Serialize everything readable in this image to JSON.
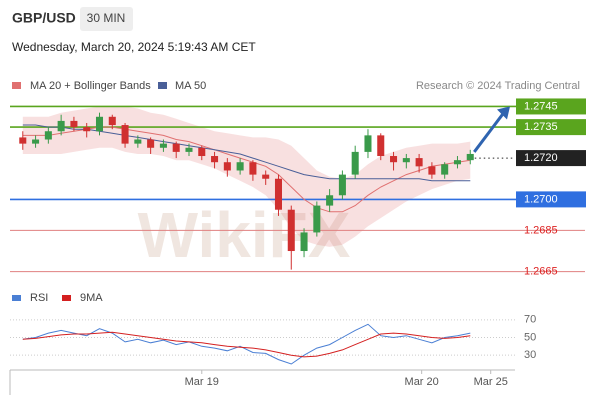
{
  "chart_data": [
    {
      "type": "candlestick",
      "title": "GBP/USD",
      "timeframe": "30 MIN",
      "subtitle": "Wednesday, March 20, 2024 5:19:43 AM CET",
      "source": "Research © 2024 Trading Central",
      "watermark": "WikiFX",
      "up_color": "#3a9a4a",
      "down_color": "#d03030",
      "xlim": [
        -1,
        38.5
      ],
      "ylim": [
        1.266,
        1.2752
      ],
      "open": [
        1.273,
        1.2727,
        1.2729,
        1.2733,
        1.2738,
        1.2735,
        1.2733,
        1.274,
        1.2736,
        1.2727,
        1.2729,
        1.2725,
        1.2727,
        1.2723,
        1.2725,
        1.2721,
        1.2718,
        1.2714,
        1.2718,
        1.2712,
        1.271,
        1.2695,
        1.2675,
        1.2684,
        1.2697,
        1.2702,
        1.2712,
        1.2723,
        1.2731,
        1.2721,
        1.2718,
        1.272,
        1.2716,
        1.2712,
        1.2717,
        1.2719
      ],
      "high": [
        1.2733,
        1.2731,
        1.2735,
        1.2741,
        1.274,
        1.2737,
        1.2742,
        1.2741,
        1.2737,
        1.2731,
        1.273,
        1.2729,
        1.2728,
        1.2727,
        1.2726,
        1.2723,
        1.272,
        1.272,
        1.2719,
        1.2714,
        1.2712,
        1.2697,
        1.2686,
        1.2699,
        1.2705,
        1.2714,
        1.2726,
        1.2734,
        1.2732,
        1.2723,
        1.2722,
        1.2722,
        1.2718,
        1.2718,
        1.2721,
        1.2724
      ],
      "low": [
        1.2724,
        1.2725,
        1.2727,
        1.2731,
        1.2733,
        1.273,
        1.2731,
        1.2734,
        1.2725,
        1.2725,
        1.2722,
        1.2723,
        1.272,
        1.2721,
        1.2719,
        1.2715,
        1.2711,
        1.2712,
        1.2709,
        1.2707,
        1.2692,
        1.2666,
        1.2672,
        1.2682,
        1.2694,
        1.27,
        1.271,
        1.272,
        1.2719,
        1.2714,
        1.2715,
        1.2713,
        1.271,
        1.271,
        1.2715,
        1.2717
      ],
      "close": [
        1.2727,
        1.2729,
        1.2733,
        1.2738,
        1.2735,
        1.2733,
        1.274,
        1.2736,
        1.2727,
        1.2729,
        1.2725,
        1.2727,
        1.2723,
        1.2725,
        1.2721,
        1.2718,
        1.2714,
        1.2718,
        1.2712,
        1.271,
        1.2695,
        1.2675,
        1.2684,
        1.2697,
        1.2702,
        1.2712,
        1.2723,
        1.2731,
        1.2721,
        1.2718,
        1.272,
        1.2716,
        1.2712,
        1.2717,
        1.2719,
        1.2722
      ],
      "series": [
        {
          "name": "MA 20 + Bollinger Bands",
          "color": "#e07070",
          "values": [
            1.2731,
            1.2731,
            1.2731,
            1.2732,
            1.2733,
            1.2734,
            1.2735,
            1.2735,
            1.2734,
            1.2733,
            1.2732,
            1.2731,
            1.2729,
            1.2728,
            1.2726,
            1.2724,
            1.2722,
            1.272,
            1.2718,
            1.2716,
            1.2712,
            1.2706,
            1.27,
            1.2696,
            1.2694,
            1.2694,
            1.2697,
            1.2702,
            1.2706,
            1.2709,
            1.2712,
            1.2714,
            1.2716,
            1.2717,
            1.2718,
            1.2719
          ],
          "upper": [
            1.274,
            1.274,
            1.274,
            1.2742,
            1.2743,
            1.2744,
            1.2745,
            1.2745,
            1.2745,
            1.2744,
            1.2742,
            1.2741,
            1.2739,
            1.2737,
            1.2735,
            1.2733,
            1.2732,
            1.2731,
            1.273,
            1.273,
            1.2729,
            1.2726,
            1.272,
            1.2714,
            1.2711,
            1.271,
            1.2712,
            1.2717,
            1.2721,
            1.2723,
            1.2725,
            1.2726,
            1.2727,
            1.2727,
            1.2727,
            1.2728
          ],
          "lower": [
            1.2722,
            1.2722,
            1.2722,
            1.2722,
            1.2723,
            1.2724,
            1.2725,
            1.2725,
            1.2723,
            1.2722,
            1.2722,
            1.2721,
            1.2719,
            1.2719,
            1.2717,
            1.2715,
            1.2712,
            1.2709,
            1.2706,
            1.2702,
            1.2695,
            1.2686,
            1.268,
            1.2678,
            1.2677,
            1.2678,
            1.2682,
            1.2687,
            1.2691,
            1.2695,
            1.2699,
            1.2702,
            1.2705,
            1.2707,
            1.2709,
            1.271
          ]
        },
        {
          "name": "MA 50",
          "color": "#4a5f98",
          "values": [
            1.2736,
            1.2736,
            1.2735,
            1.2735,
            1.2734,
            1.2734,
            1.2733,
            1.2732,
            1.2731,
            1.273,
            1.2729,
            1.2728,
            1.2727,
            1.2726,
            1.2725,
            1.2724,
            1.2723,
            1.2722,
            1.272,
            1.2718,
            1.2716,
            1.2714,
            1.2712,
            1.2711,
            1.271,
            1.271,
            1.271,
            1.271,
            1.271,
            1.271,
            1.271,
            1.271,
            1.2709,
            1.2709,
            1.2709,
            1.2709
          ]
        }
      ],
      "levels": [
        {
          "value": 1.2745,
          "color": "#5aa51e",
          "style": "box"
        },
        {
          "value": 1.2735,
          "color": "#5aa51e",
          "style": "box"
        },
        {
          "value": 1.272,
          "label": "1.2720",
          "color": "#222222",
          "style": "current"
        },
        {
          "value": 1.27,
          "label": "1.2700",
          "color": "#2f6fe0",
          "style": "box"
        },
        {
          "value": 1.2685,
          "color": "#e08080",
          "style": "text"
        },
        {
          "value": 1.2665,
          "color": "#e08080",
          "style": "text"
        }
      ]
    },
    {
      "type": "line",
      "xlim": [
        -1,
        38.5
      ],
      "ylim": [
        20,
        80
      ],
      "yticks": [
        30,
        50,
        70
      ],
      "xticks": [
        {
          "value": 14,
          "label": "Mar 19"
        },
        {
          "value": 31.2,
          "label": "Mar 20"
        },
        {
          "value": 36.6,
          "label": "Mar 25"
        }
      ],
      "series": [
        {
          "name": "RSI",
          "color": "#4a7fd4",
          "values": [
            48,
            50,
            55,
            58,
            55,
            52,
            60,
            55,
            45,
            48,
            44,
            47,
            42,
            45,
            40,
            38,
            35,
            40,
            33,
            32,
            25,
            20,
            30,
            38,
            42,
            50,
            58,
            65,
            52,
            50,
            52,
            48,
            44,
            50,
            52,
            55
          ]
        },
        {
          "name": "9MA",
          "color": "#d42020",
          "values": [
            48,
            49,
            51,
            53,
            54,
            54,
            55,
            56,
            54,
            52,
            50,
            48,
            46,
            45,
            44,
            42,
            40,
            39,
            38,
            36,
            33,
            30,
            28,
            29,
            32,
            36,
            42,
            48,
            54,
            55,
            54,
            52,
            50,
            49,
            50,
            52
          ]
        }
      ]
    }
  ]
}
